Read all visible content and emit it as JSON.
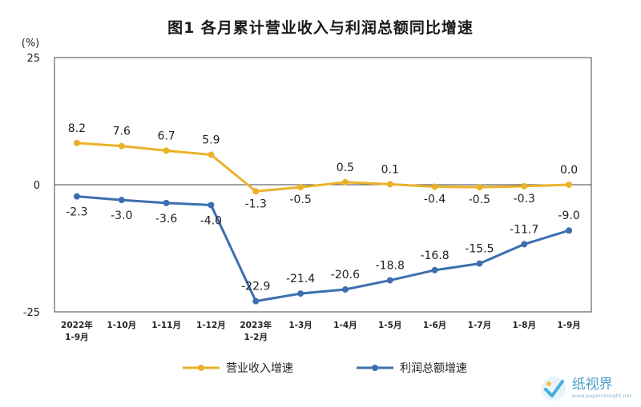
{
  "chart_data": {
    "type": "line",
    "title": "图1  各月累计营业收入与利润总额同比增速",
    "unit_label": "(%)",
    "ylim": [
      -25,
      25
    ],
    "yticks": [
      25,
      0,
      -25
    ],
    "grid": false,
    "legend_position": "bottom",
    "categories": [
      [
        "2022年",
        "1-9月"
      ],
      [
        "1-10月"
      ],
      [
        "1-11月"
      ],
      [
        "1-12月"
      ],
      [
        "2023年",
        "1-2月"
      ],
      [
        "1-3月"
      ],
      [
        "1-4月"
      ],
      [
        "1-5月"
      ],
      [
        "1-6月"
      ],
      [
        "1-7月"
      ],
      [
        "1-8月"
      ],
      [
        "1-9月"
      ]
    ],
    "series": [
      {
        "name": "营业收入增速",
        "color": "#eab22a",
        "values": [
          8.2,
          7.6,
          6.7,
          5.9,
          -1.3,
          -0.5,
          0.5,
          0.1,
          -0.4,
          -0.5,
          -0.3,
          0.0
        ],
        "labels": [
          "8.2",
          "7.6",
          "6.7",
          "5.9",
          "-1.3",
          "-0.5",
          "0.5",
          "0.1",
          "-0.4",
          "-0.5",
          "-0.3",
          "0.0"
        ]
      },
      {
        "name": "利润总额增速",
        "color": "#3d6fae",
        "values": [
          -2.3,
          -3.0,
          -3.6,
          -4.0,
          -22.9,
          -21.4,
          -20.6,
          -18.8,
          -16.8,
          -15.5,
          -11.7,
          -9.0
        ],
        "labels": [
          "-2.3",
          "-3.0",
          "-3.6",
          "-4.0",
          "-22.9",
          "-21.4",
          "-20.6",
          "-18.8",
          "-16.8",
          "-15.5",
          "-11.7",
          "-9.0"
        ]
      }
    ]
  },
  "watermark": {
    "name": "纸视界",
    "url": "www.papersinsight.net"
  }
}
